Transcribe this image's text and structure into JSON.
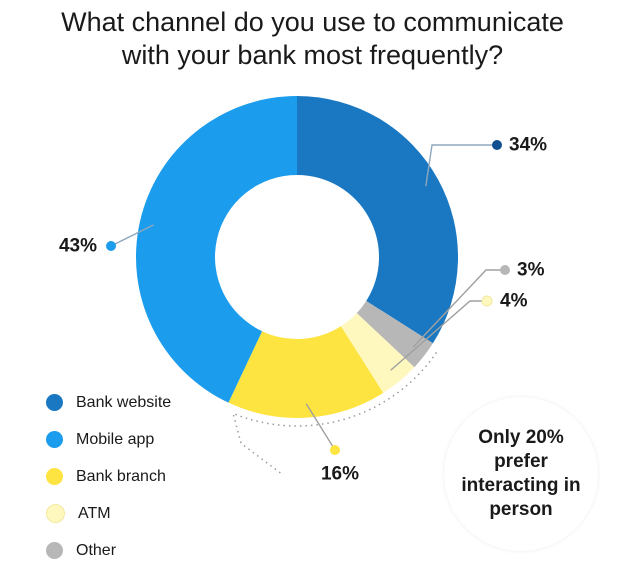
{
  "title_lines": [
    "What channel do you use to communicate",
    "with your bank most frequently?"
  ],
  "chart_data": {
    "type": "pie",
    "title": "What channel do you use to communicate with your bank most frequently?",
    "donut": true,
    "start_angle_deg": 270,
    "legend_position": "bottom-left",
    "categories": [
      "Bank website",
      "Mobile app",
      "Bank branch",
      "ATM",
      "Other"
    ],
    "values": [
      34,
      43,
      16,
      4,
      3
    ],
    "labels": [
      "34%",
      "43%",
      "16%",
      "4%",
      "3%"
    ],
    "colors": [
      "#1a78c2",
      "#1b9cec",
      "#fde440",
      "#fff8be",
      "#b7b7b7"
    ],
    "slice_order": [
      "Bank website",
      "Other",
      "ATM",
      "Bank branch",
      "Mobile app"
    ],
    "annotation": "Only 20% prefer interacting in person"
  },
  "legend": [
    {
      "label": "Bank website",
      "color": "#1a78c2"
    },
    {
      "label": "Mobile app",
      "color": "#1b9cec"
    },
    {
      "label": "Bank branch",
      "color": "#fde440"
    },
    {
      "label": "ATM",
      "color": "#fff8be"
    },
    {
      "label": "Other",
      "color": "#b7b7b7"
    }
  ],
  "callout": {
    "text": "Only 20% prefer interacting in person"
  }
}
